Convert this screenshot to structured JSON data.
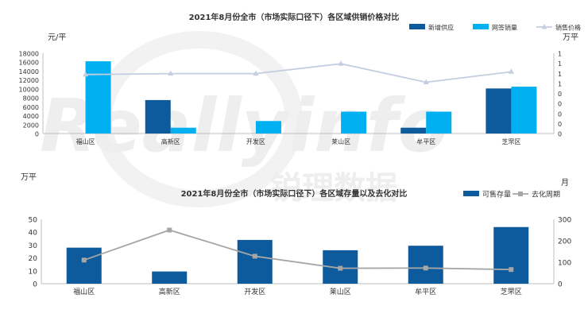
{
  "charts": [
    {
      "title": "2021年8月份全市（市场实际口径下）各区域供销价格对比",
      "left_unit": "元/平",
      "right_unit": "万平"
    },
    {
      "title": "2021年8月份全市（市场实际口径下）各区域存量以及去化对比",
      "left_unit": "万平",
      "right_unit": "月"
    }
  ],
  "watermark": {
    "latin": "Reallyinfo",
    "chinese": "锐理数据"
  },
  "chart_data": [
    {
      "type": "bar",
      "title": "2021年8月份全市（市场实际口径下）各区域供销价格对比",
      "categories": [
        "福山区",
        "高新区",
        "开发区",
        "莱山区",
        "牟平区",
        "芝罘区"
      ],
      "series": [
        {
          "name": "新增供应",
          "kind": "bar",
          "axis": "left",
          "color": "#0d5a9c",
          "values": [
            0,
            7500,
            0,
            0,
            1300,
            10100
          ]
        },
        {
          "name": "网签销量",
          "kind": "bar",
          "axis": "left",
          "color": "#00b0f0",
          "values": [
            16200,
            1300,
            2800,
            4900,
            4900,
            10500
          ]
        },
        {
          "name": "销售价格",
          "kind": "line",
          "axis": "right",
          "color": "#c3cee0",
          "values": [
            0.955,
            0.97,
            0.97,
            1.13,
            0.83,
            1.0
          ]
        }
      ],
      "ylim": [
        0,
        18000
      ],
      "yticks": [
        0,
        2000,
        4000,
        6000,
        8000,
        10000,
        12000,
        14000,
        16000,
        18000
      ],
      "y2lim": [
        0,
        1.3
      ],
      "y2ticks": [
        "0",
        "0",
        "0",
        "0",
        "0",
        "1",
        "1",
        "1",
        "1"
      ],
      "legend_position": "top-right"
    },
    {
      "type": "bar",
      "title": "2021年8月份全市（市场实际口径下）各区域存量以及去化对比",
      "categories": [
        "福山区",
        "高新区",
        "开发区",
        "莱山区",
        "牟平区",
        "芝罘区"
      ],
      "series": [
        {
          "name": "可售存量",
          "kind": "bar",
          "axis": "left",
          "color": "#0d5a9c",
          "values": [
            28,
            9.5,
            34,
            26,
            29.5,
            44
          ]
        },
        {
          "name": "去化周期",
          "kind": "line",
          "axis": "right",
          "color": "#a6a6a6",
          "values": [
            110,
            250,
            128,
            72,
            73,
            66
          ]
        }
      ],
      "ylim": [
        0,
        50
      ],
      "yticks": [
        0,
        10,
        20,
        30,
        40,
        50
      ],
      "y2lim": [
        0,
        300
      ],
      "y2ticks": [
        0,
        100,
        200,
        300
      ],
      "legend_position": "top-right"
    }
  ]
}
